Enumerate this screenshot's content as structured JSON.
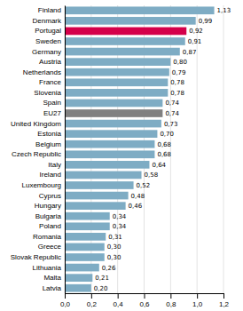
{
  "chart_data": {
    "type": "bar",
    "orientation": "horizontal",
    "categories": [
      "Finland",
      "Denmark",
      "Portugal",
      "Sweden",
      "Germany",
      "Austria",
      "Netherlands",
      "France",
      "Slovenia",
      "Spain",
      "EU27",
      "United Kingdom",
      "Estonia",
      "Belgium",
      "Czech Republic",
      "Italy",
      "Ireland",
      "Luxembourg",
      "Cyprus",
      "Hungary",
      "Bulgaria",
      "Poland",
      "Romania",
      "Greece",
      "Slovak Republic",
      "Lithuania",
      "Malta",
      "Latvia"
    ],
    "values": [
      1.13,
      0.99,
      0.92,
      0.91,
      0.87,
      0.8,
      0.79,
      0.78,
      0.78,
      0.74,
      0.74,
      0.73,
      0.7,
      0.68,
      0.68,
      0.64,
      0.58,
      0.52,
      0.48,
      0.46,
      0.34,
      0.34,
      0.31,
      0.3,
      0.3,
      0.26,
      0.21,
      0.2
    ],
    "value_labels": [
      "1,13",
      "0,99",
      "0,92",
      "0,91",
      "0,87",
      "0,80",
      "0,79",
      "0,78",
      "0,78",
      "0,74",
      "0,74",
      "0,73",
      "0,70",
      "0,68",
      "0,68",
      "0,64",
      "0,58",
      "0,52",
      "0,48",
      "0,46",
      "0,34",
      "0,34",
      "0,31",
      "0,30",
      "0,30",
      "0,26",
      "0,21",
      "0,20"
    ],
    "data_labels": true,
    "colors": [
      "#7eacc4",
      "#7eacc4",
      "#d4004a",
      "#7eacc4",
      "#7eacc4",
      "#7eacc4",
      "#7eacc4",
      "#7eacc4",
      "#7eacc4",
      "#7eacc4",
      "#808080",
      "#7eacc4",
      "#7eacc4",
      "#7eacc4",
      "#7eacc4",
      "#7eacc4",
      "#7eacc4",
      "#7eacc4",
      "#7eacc4",
      "#7eacc4",
      "#7eacc4",
      "#7eacc4",
      "#7eacc4",
      "#7eacc4",
      "#7eacc4",
      "#7eacc4",
      "#7eacc4",
      "#7eacc4"
    ],
    "xlim": [
      0,
      1.2
    ],
    "xticks": [
      {
        "value": 0.0,
        "label": "0,0"
      },
      {
        "value": 0.2,
        "label": "0,2"
      },
      {
        "value": 0.4,
        "label": "0,4"
      },
      {
        "value": 0.6,
        "label": "0,6"
      },
      {
        "value": 0.8,
        "label": "0,8"
      },
      {
        "value": 1.0,
        "label": "1,0"
      },
      {
        "value": 1.2,
        "label": "1,2"
      }
    ],
    "grid": true
  }
}
